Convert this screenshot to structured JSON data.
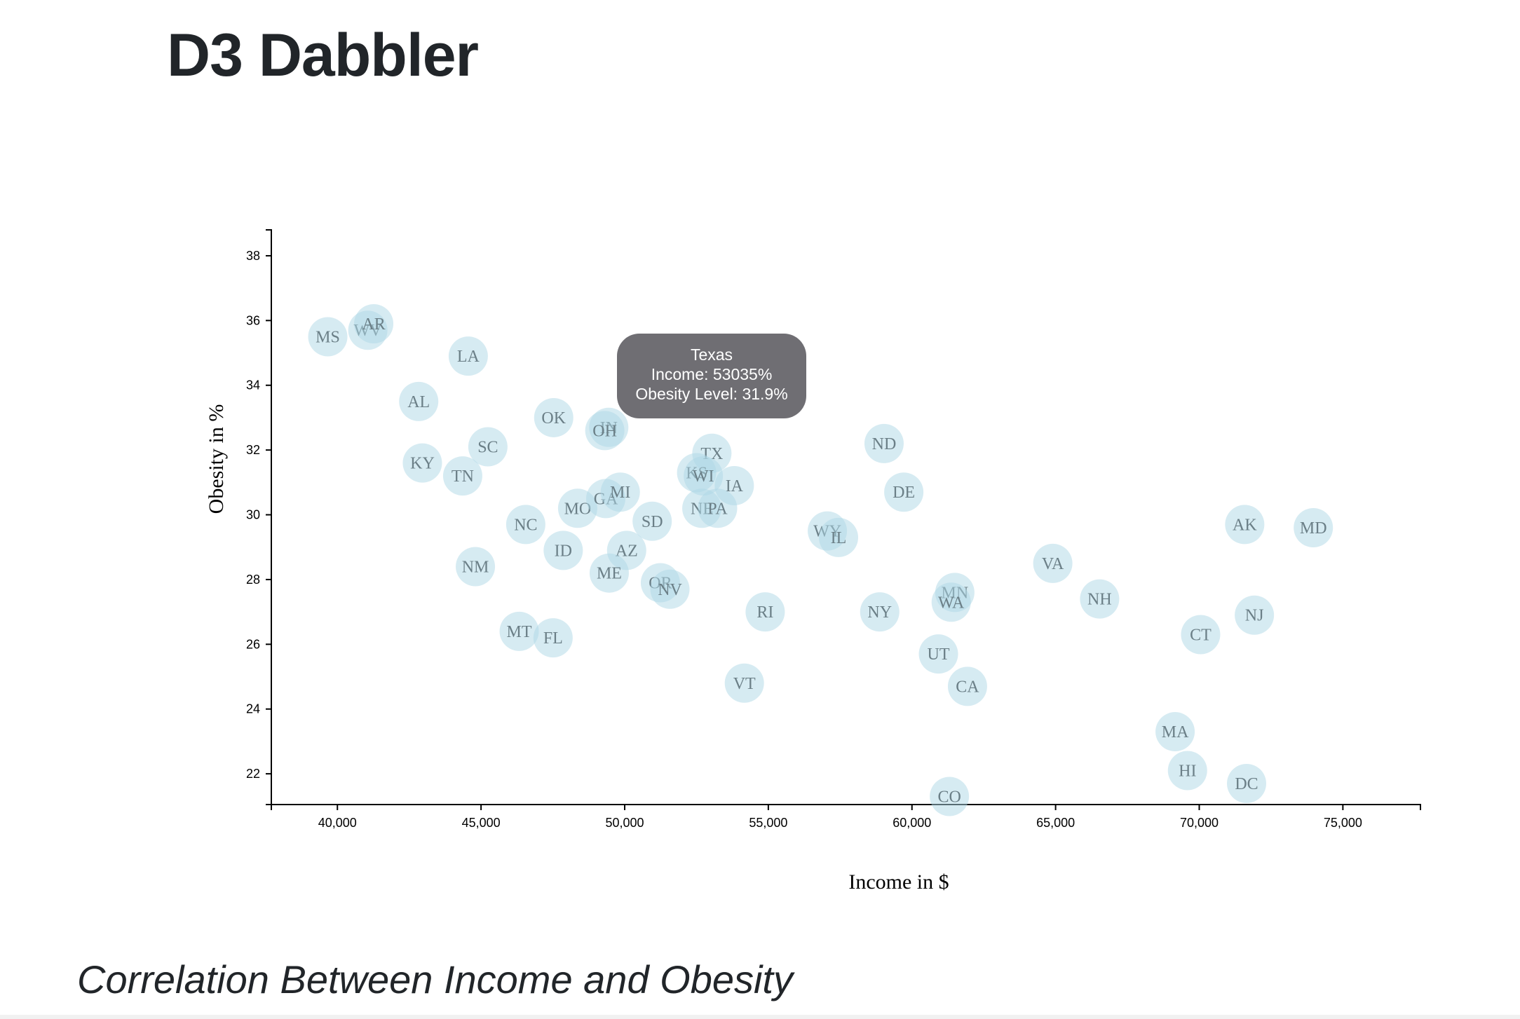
{
  "page": {
    "title": "D3 Dabbler",
    "heading": "Correlation Between Income and Obesity"
  },
  "tooltip": {
    "title": "Texas",
    "line1": "Income: 53035%",
    "line2": "Obesity Level: 31.9%"
  },
  "colors": {
    "circle": "#add8e6",
    "label": "#6b7f87",
    "tooltip_bg": "#6f6e73"
  },
  "chart_data": {
    "type": "scatter",
    "xlabel": "Income in $",
    "ylabel": "Obesity in %",
    "xlim": [
      37700,
      77700
    ],
    "ylim": [
      21.05,
      38.8
    ],
    "xticks": [
      40000,
      45000,
      50000,
      55000,
      60000,
      65000,
      70000,
      75000
    ],
    "xtick_labels": [
      "40,000",
      "45,000",
      "50,000",
      "55,000",
      "60,000",
      "65,000",
      "70,000",
      "75,000"
    ],
    "yticks": [
      22,
      24,
      26,
      28,
      30,
      32,
      34,
      36,
      38
    ],
    "ytick_labels": [
      "22",
      "24",
      "26",
      "28",
      "30",
      "32",
      "34",
      "36",
      "38"
    ],
    "grid": false,
    "points": [
      {
        "label": "MS",
        "x": 39665,
        "y": 35.5
      },
      {
        "label": "WV",
        "x": 41059,
        "y": 35.7
      },
      {
        "label": "AR",
        "x": 41264,
        "y": 35.9
      },
      {
        "label": "LA",
        "x": 44555,
        "y": 34.9
      },
      {
        "label": "AL",
        "x": 42830,
        "y": 33.5
      },
      {
        "label": "KY",
        "x": 42958,
        "y": 31.6
      },
      {
        "label": "TN",
        "x": 44361,
        "y": 31.2
      },
      {
        "label": "SC",
        "x": 45238,
        "y": 32.1
      },
      {
        "label": "OK",
        "x": 47529,
        "y": 33.0
      },
      {
        "label": "IN",
        "x": 49446,
        "y": 32.7
      },
      {
        "label": "OH",
        "x": 49308,
        "y": 32.6
      },
      {
        "label": "NC",
        "x": 46556,
        "y": 29.7
      },
      {
        "label": "MO",
        "x": 48363,
        "y": 30.2
      },
      {
        "label": "GA",
        "x": 49342,
        "y": 30.5
      },
      {
        "label": "MI",
        "x": 49847,
        "y": 30.7
      },
      {
        "label": "ID",
        "x": 47861,
        "y": 28.9
      },
      {
        "label": "NM",
        "x": 44803,
        "y": 28.4
      },
      {
        "label": "AZ",
        "x": 50068,
        "y": 28.9
      },
      {
        "label": "ME",
        "x": 49462,
        "y": 28.2
      },
      {
        "label": "SD",
        "x": 50957,
        "y": 29.8
      },
      {
        "label": "OR",
        "x": 51243,
        "y": 27.9
      },
      {
        "label": "NV",
        "x": 51575,
        "y": 27.7
      },
      {
        "label": "MT",
        "x": 46328,
        "y": 26.4
      },
      {
        "label": "FL",
        "x": 47507,
        "y": 26.2
      },
      {
        "label": "TX",
        "x": 53035,
        "y": 31.9
      },
      {
        "label": "KS",
        "x": 52504,
        "y": 31.3
      },
      {
        "label": "WI",
        "x": 52738,
        "y": 31.2
      },
      {
        "label": "IA",
        "x": 53816,
        "y": 30.9
      },
      {
        "label": "NE",
        "x": 52686,
        "y": 30.2
      },
      {
        "label": "PA",
        "x": 53234,
        "y": 30.2
      },
      {
        "label": "RI",
        "x": 54891,
        "y": 27.0
      },
      {
        "label": "VT",
        "x": 54166,
        "y": 24.8
      },
      {
        "label": "WY",
        "x": 57055,
        "y": 29.5
      },
      {
        "label": "IL",
        "x": 57444,
        "y": 29.3
      },
      {
        "label": "ND",
        "x": 59029,
        "y": 32.2
      },
      {
        "label": "DE",
        "x": 59716,
        "y": 30.7
      },
      {
        "label": "NY",
        "x": 58878,
        "y": 27.0
      },
      {
        "label": "MN",
        "x": 61492,
        "y": 27.6
      },
      {
        "label": "WA",
        "x": 61366,
        "y": 27.3
      },
      {
        "label": "UT",
        "x": 60922,
        "y": 25.7
      },
      {
        "label": "CA",
        "x": 61933,
        "y": 24.7
      },
      {
        "label": "CO",
        "x": 61303,
        "y": 21.3
      },
      {
        "label": "VA",
        "x": 64902,
        "y": 28.5
      },
      {
        "label": "NH",
        "x": 66532,
        "y": 27.4
      },
      {
        "label": "CT",
        "x": 70048,
        "y": 26.3
      },
      {
        "label": "NJ",
        "x": 71919,
        "y": 26.9
      },
      {
        "label": "MA",
        "x": 69160,
        "y": 23.3
      },
      {
        "label": "HI",
        "x": 69592,
        "y": 22.1
      },
      {
        "label": "DC",
        "x": 71648,
        "y": 21.7
      },
      {
        "label": "AK",
        "x": 71583,
        "y": 29.7
      },
      {
        "label": "MD",
        "x": 73971,
        "y": 29.6
      }
    ]
  }
}
